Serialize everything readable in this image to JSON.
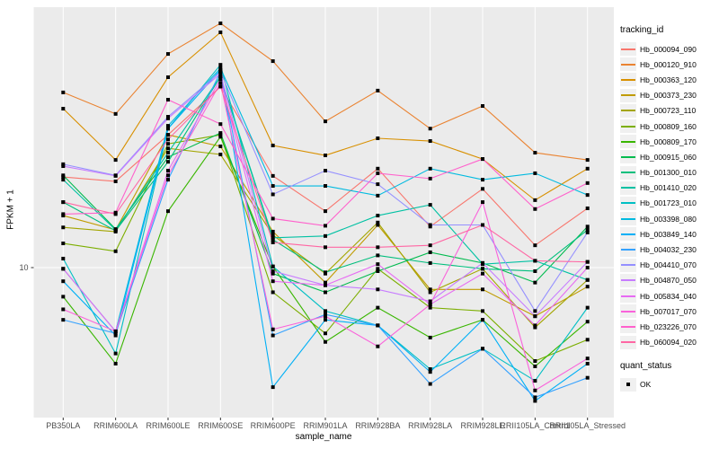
{
  "figure": {
    "background": "#FFFFFF",
    "panel_background": "#EBEBEB",
    "gridline_color": "#FFFFFF",
    "tick_label_color": "#4D4D4D",
    "point_color": "#000000"
  },
  "chart_data": {
    "type": "line",
    "title": "",
    "xlabel": "sample_name",
    "ylabel": "FPKM + 1",
    "yscale": "log10",
    "ytick_labels": [
      "10"
    ],
    "ylim_approx": [
      3,
      90
    ],
    "grid": true,
    "legend_position": "right",
    "legend_title": "tracking_id",
    "marker": "black-square",
    "categories": [
      "PB350LA",
      "RRIM600LA",
      "RRIM600LE",
      "RRIM600SE",
      "RRIM600PE",
      "RRIM901LA",
      "RRIM928BA",
      "RRIM928LA",
      "RRIM928LE",
      "RRII105LA_Control",
      "RRII105LA_Stressed"
    ],
    "series": [
      {
        "name": "Hb_000094_090",
        "color": "#F8766D",
        "values": [
          21.7,
          20.9,
          31.1,
          47.0,
          21.9,
          16.2,
          23.3,
          14.2,
          19.6,
          12.1,
          16.6
        ]
      },
      {
        "name": "Hb_000120_910",
        "color": "#EA8331",
        "values": [
          44.7,
          37.2,
          62.1,
          80.7,
          58.4,
          34.9,
          45.4,
          32.8,
          39.8,
          26.7,
          25.1
        ]
      },
      {
        "name": "Hb_000363_120",
        "color": "#D89000",
        "values": [
          38.9,
          25.1,
          50.9,
          74.7,
          28.4,
          26.1,
          30.2,
          29.5,
          25.3,
          17.8,
          23.3
        ]
      },
      {
        "name": "Hb_000373_230",
        "color": "#C09B00",
        "values": [
          15.6,
          13.8,
          31.1,
          28.2,
          13.6,
          8.8,
          14.4,
          8.3,
          8.3,
          6.6,
          8.5
        ]
      },
      {
        "name": "Hb_000723_110",
        "color": "#A3A500",
        "values": [
          14.1,
          13.6,
          27.7,
          26.3,
          13.2,
          9.5,
          14.7,
          8.1,
          9.9,
          6.0,
          9.0
        ]
      },
      {
        "name": "Hb_000809_160",
        "color": "#7CAE00",
        "values": [
          12.3,
          11.5,
          28.8,
          31.1,
          8.1,
          5.7,
          9.9,
          7.1,
          6.9,
          4.5,
          5.4
        ]
      },
      {
        "name": "Hb_000809_170",
        "color": "#39B600",
        "values": [
          7.8,
          4.4,
          16.2,
          30.6,
          10.1,
          5.3,
          7.1,
          5.5,
          6.4,
          4.3,
          6.3
        ]
      },
      {
        "name": "Hb_000915_060",
        "color": "#00BB4E",
        "values": [
          22.0,
          13.9,
          25.7,
          31.6,
          9.5,
          8.1,
          9.7,
          11.4,
          10.4,
          8.8,
          14.2
        ]
      },
      {
        "name": "Hb_001300_010",
        "color": "#00BF7D",
        "values": [
          17.5,
          13.7,
          24.7,
          51.2,
          12.7,
          9.6,
          11.1,
          10.4,
          9.9,
          9.7,
          13.8
        ]
      },
      {
        "name": "Hb_001410_020",
        "color": "#00C1A3",
        "values": [
          21.2,
          13.8,
          26.7,
          51.2,
          12.9,
          13.1,
          15.6,
          17.1,
          10.3,
          10.6,
          9.0
        ]
      },
      {
        "name": "Hb_001723_010",
        "color": "#00BFC4",
        "values": [
          10.8,
          4.8,
          32.8,
          56.6,
          10.1,
          6.9,
          6.1,
          4.2,
          5.0,
          3.8,
          7.1
        ]
      },
      {
        "name": "Hb_003398_080",
        "color": "#00BAE0",
        "values": [
          9.9,
          5.8,
          33.6,
          55.0,
          20.1,
          20.1,
          18.5,
          23.3,
          21.2,
          22.4,
          18.6
        ]
      },
      {
        "name": "Hb_003849_140",
        "color": "#00B0F6",
        "values": [
          8.9,
          5.6,
          32.8,
          54.2,
          3.6,
          6.4,
          6.1,
          4.1,
          6.4,
          3.2,
          4.4
        ]
      },
      {
        "name": "Hb_004032_230",
        "color": "#35A2FF",
        "values": [
          6.4,
          5.7,
          21.2,
          53.3,
          5.6,
          6.7,
          6.1,
          3.7,
          5.0,
          3.3,
          3.9
        ]
      },
      {
        "name": "Hb_004410_070",
        "color": "#9590FF",
        "values": [
          24.2,
          22.0,
          36.3,
          53.3,
          18.7,
          22.9,
          20.4,
          14.4,
          14.4,
          6.9,
          13.5
        ]
      },
      {
        "name": "Hb_004870_050",
        "color": "#C77CFF",
        "values": [
          23.8,
          21.9,
          35.8,
          52.5,
          9.7,
          8.6,
          8.3,
          7.5,
          10.4,
          6.6,
          10.5
        ]
      },
      {
        "name": "Hb_005834_040",
        "color": "#E76BF3",
        "values": [
          9.9,
          5.8,
          22.9,
          50.1,
          8.9,
          8.6,
          10.3,
          7.3,
          9.5,
          6.1,
          10.0
        ]
      },
      {
        "name": "Hb_007017_070",
        "color": "#FA62DB",
        "values": [
          7.0,
          5.8,
          22.0,
          48.5,
          5.9,
          6.6,
          5.1,
          7.3,
          17.5,
          3.5,
          4.6
        ]
      },
      {
        "name": "Hb_023226_070",
        "color": "#FF61CC",
        "values": [
          15.8,
          16.0,
          42.0,
          34.1,
          15.2,
          14.3,
          22.4,
          21.4,
          25.3,
          16.5,
          20.6
        ]
      },
      {
        "name": "Hb_060094_020",
        "color": "#FF67A4",
        "values": [
          17.5,
          15.8,
          29.9,
          47.0,
          12.4,
          11.9,
          11.9,
          12.1,
          14.4,
          10.6,
          10.5
        ]
      }
    ],
    "quant_status": {
      "title": "quant_status",
      "entries": [
        "OK"
      ]
    }
  }
}
